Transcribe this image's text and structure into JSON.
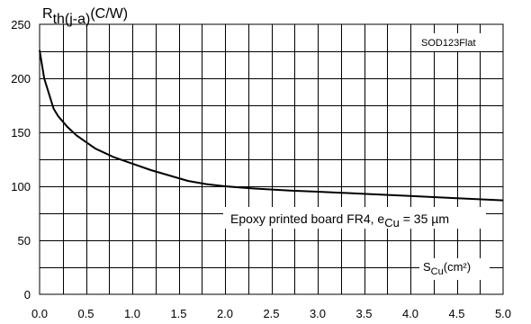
{
  "chart_data": {
    "type": "line",
    "ylabel_main": "R",
    "ylabel_sub": "th(j-a)",
    "ylabel_unit": "(C/W)",
    "xlabel_main": "S",
    "xlabel_sub": "Cu",
    "xlabel_unit": "(cm²)",
    "package_label": "SOD123Flat",
    "annotation_main": "Epoxy printed board FR4, e",
    "annotation_sub": "Cu",
    "annotation_rest": " = 35 µm",
    "xlim": [
      0,
      5
    ],
    "ylim": [
      0,
      250
    ],
    "x_ticks": [
      "0.0",
      "0.5",
      "1.0",
      "1.5",
      "2.0",
      "2.5",
      "3.0",
      "3.5",
      "4.0",
      "4.5",
      "5.0"
    ],
    "y_ticks": [
      "0",
      "50",
      "100",
      "150",
      "200",
      "250"
    ],
    "grid": true,
    "series": [
      {
        "x": [
          0.0,
          0.05,
          0.1,
          0.15,
          0.2,
          0.3,
          0.4,
          0.5,
          0.6,
          0.7,
          0.8,
          1.0,
          1.2,
          1.4,
          1.6,
          1.8,
          2.0,
          2.3,
          2.7,
          3.0,
          3.5,
          4.0,
          4.5,
          5.0
        ],
        "y": [
          226,
          200,
          186,
          172,
          165,
          155,
          147,
          141,
          135,
          131,
          127,
          121,
          115,
          110,
          105,
          102,
          100,
          98,
          96,
          95,
          93,
          91,
          89,
          87
        ]
      }
    ]
  }
}
